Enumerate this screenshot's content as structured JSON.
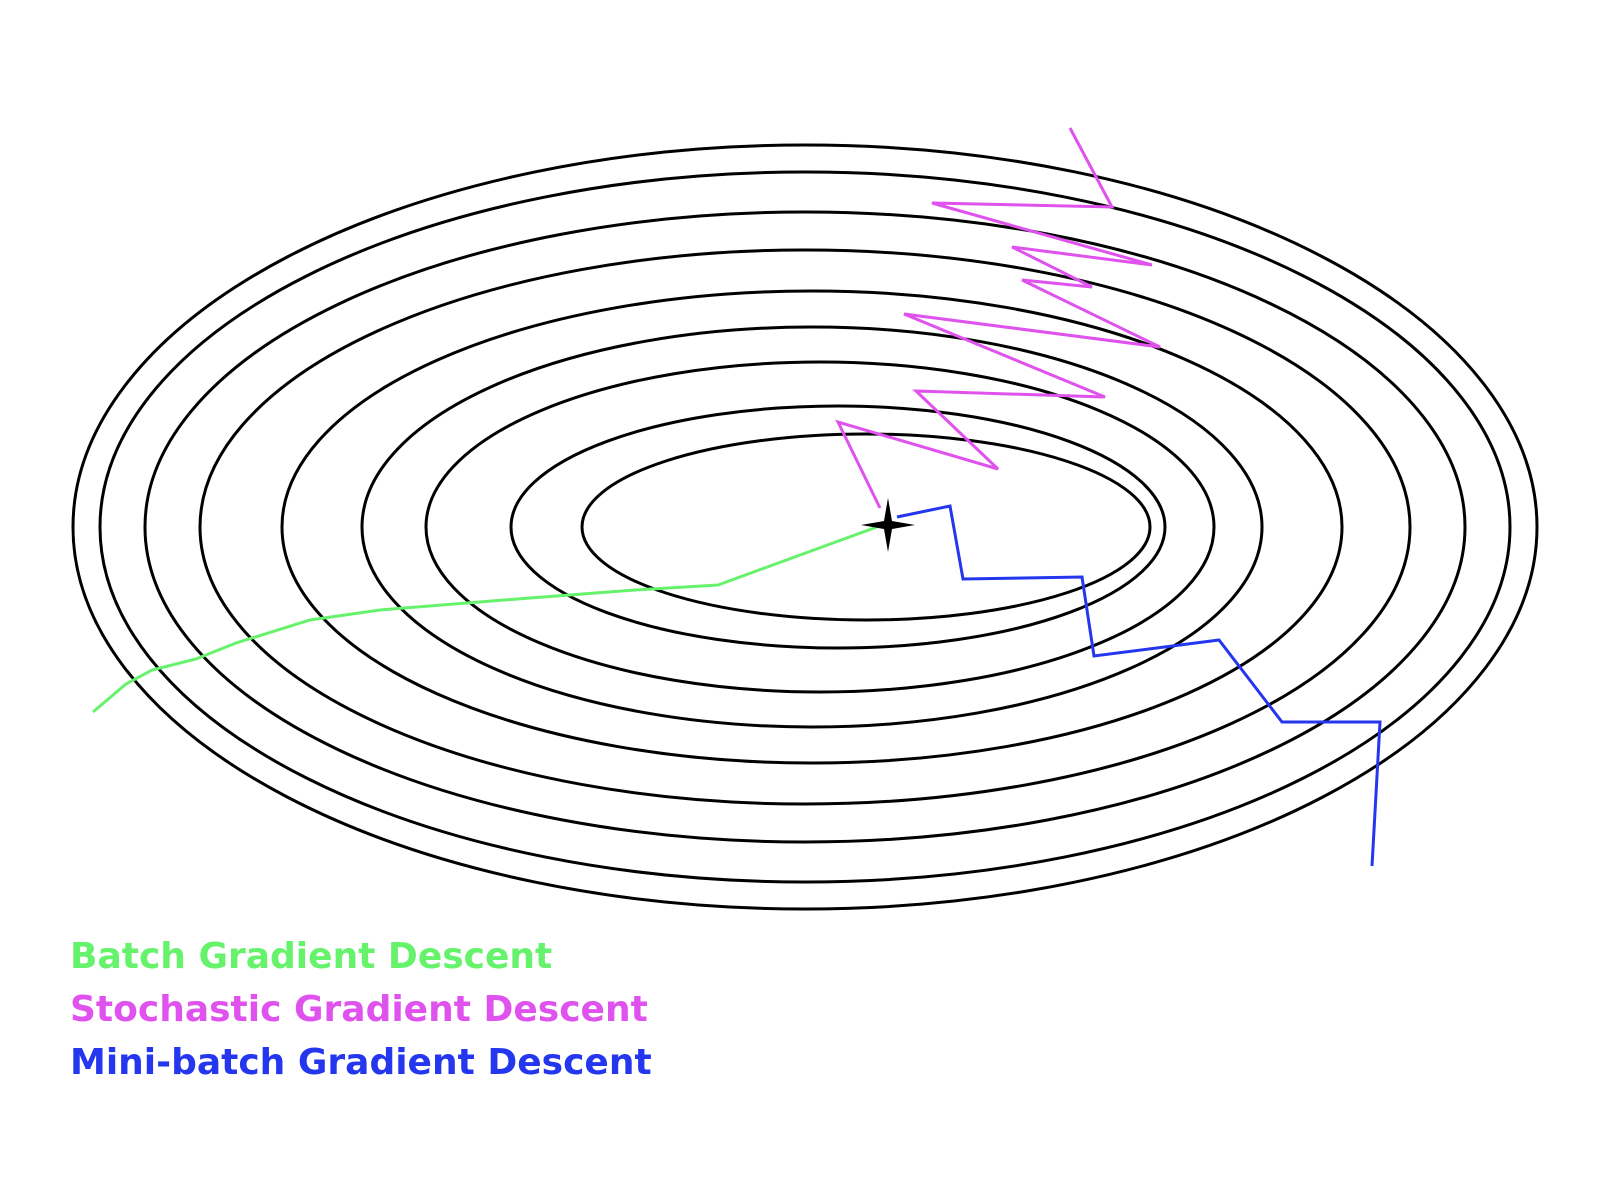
{
  "diagram": {
    "contour_count": 9,
    "minimum_marker": "four-point-star-icon"
  },
  "paths": [
    {
      "id": "batch",
      "color": "#66f26b"
    },
    {
      "id": "stochastic",
      "color": "#e052ee"
    },
    {
      "id": "minibatch",
      "color": "#2436ee"
    }
  ],
  "legend": {
    "items": [
      {
        "label": "Batch Gradient Descent",
        "color": "#66f26b"
      },
      {
        "label": "Stochastic Gradient Descent",
        "color": "#e052ee"
      },
      {
        "label": "Mini-batch Gradient Descent",
        "color": "#2436ee"
      }
    ]
  }
}
